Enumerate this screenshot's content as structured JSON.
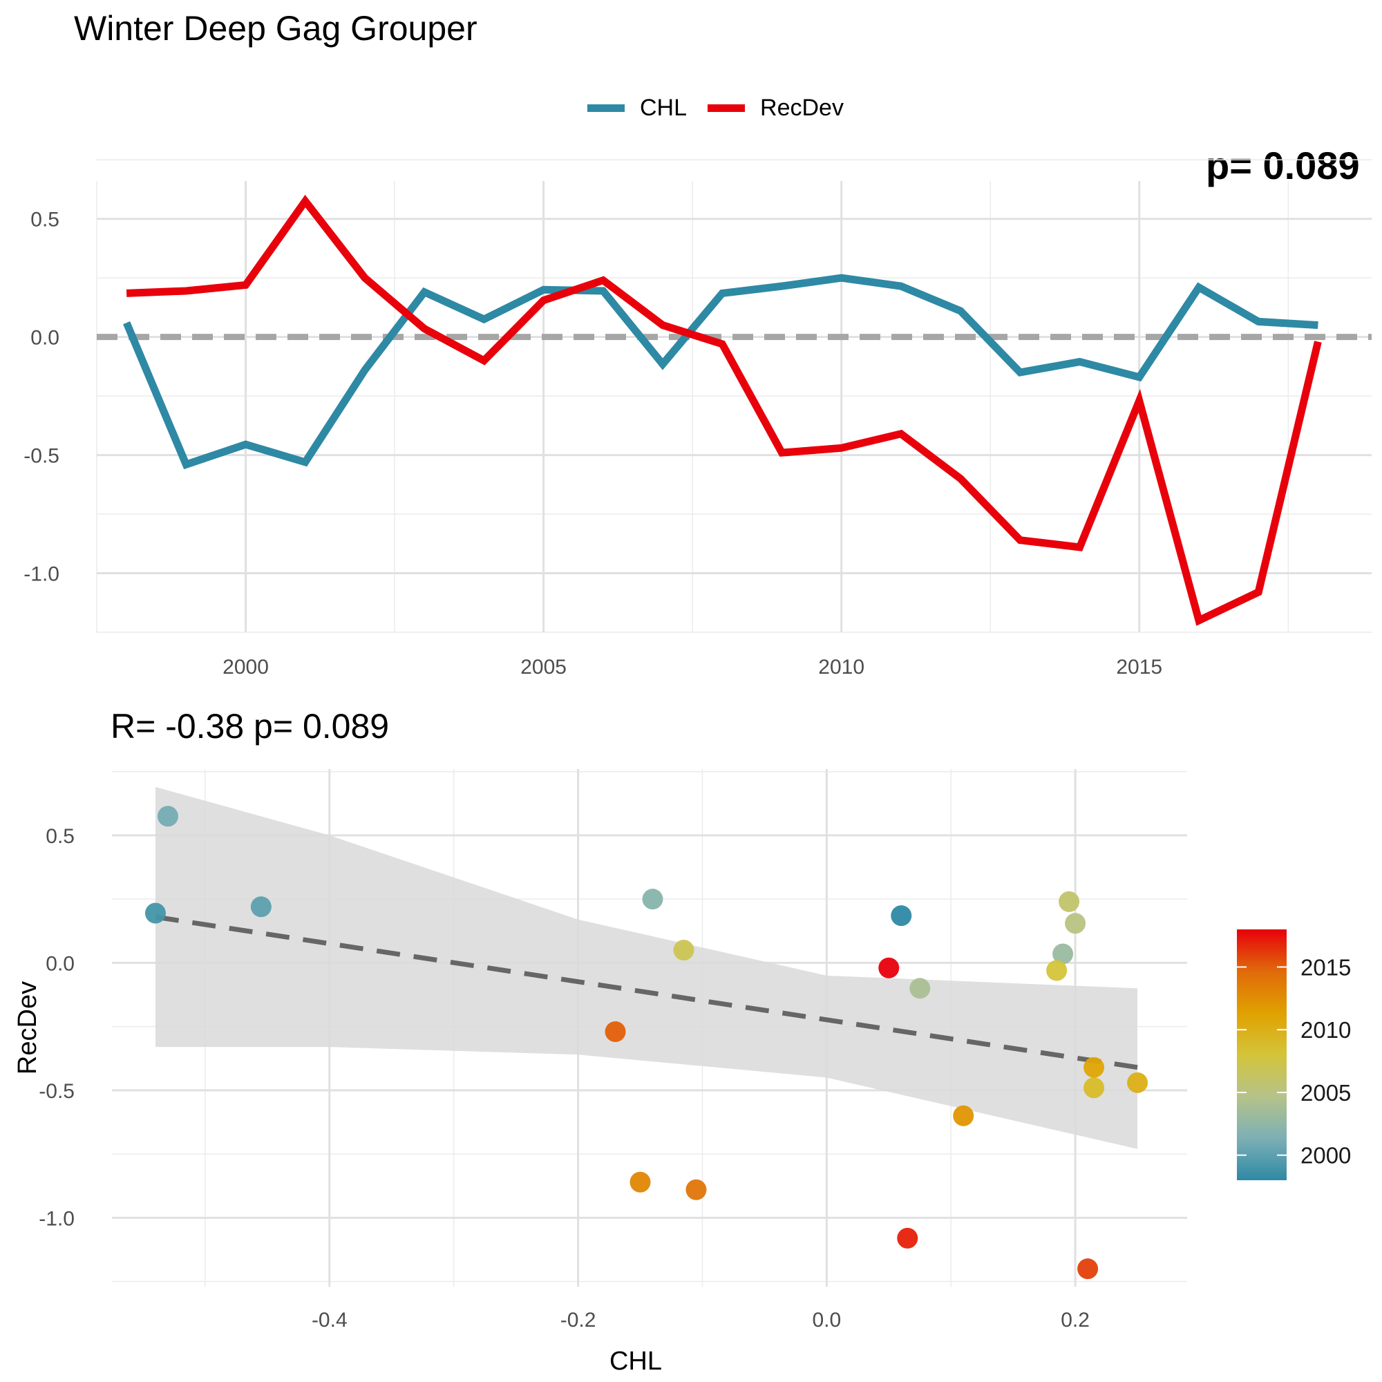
{
  "title": "Winter Deep Gag Grouper",
  "legend": [
    {
      "label": "CHL",
      "color": "#2E89A4"
    },
    {
      "label": "RecDev",
      "color": "#E8000B"
    }
  ],
  "corner_annotation": "p= 0.089",
  "scatter_annotation": "R= -0.38  p= 0.089",
  "chart_data": [
    {
      "type": "line",
      "x": [
        1998,
        1999,
        2000,
        2001,
        2002,
        2003,
        2004,
        2005,
        2006,
        2007,
        2008,
        2009,
        2010,
        2011,
        2012,
        2013,
        2014,
        2015,
        2016,
        2017,
        2018
      ],
      "series": [
        {
          "name": "CHL",
          "color": "#2E89A4",
          "values": [
            0.06,
            -0.54,
            -0.455,
            -0.53,
            -0.14,
            0.19,
            0.075,
            0.2,
            0.195,
            -0.115,
            0.185,
            0.215,
            0.25,
            0.215,
            0.11,
            -0.15,
            -0.105,
            -0.17,
            0.21,
            0.065,
            0.05
          ]
        },
        {
          "name": "RecDev",
          "color": "#E8000B",
          "values": [
            0.185,
            0.195,
            0.22,
            0.575,
            0.25,
            0.035,
            -0.1,
            0.155,
            0.24,
            0.05,
            -0.03,
            -0.49,
            -0.47,
            -0.41,
            -0.6,
            -0.86,
            -0.89,
            -0.27,
            -1.2,
            -1.08,
            -0.02
          ]
        }
      ],
      "hline": 0,
      "xlim": [
        1997.5,
        2018.9
      ],
      "ylim": [
        -1.25,
        0.66
      ],
      "xticks": [
        2000,
        2005,
        2010,
        2015
      ],
      "yticks": [
        -1.0,
        -0.5,
        0.0,
        0.5
      ],
      "xtick_labels": [
        "2000",
        "2005",
        "2010",
        "2015"
      ],
      "ytick_labels": [
        "-1.0",
        "-0.5",
        "0.0",
        "0.5"
      ],
      "grid": true
    },
    {
      "type": "scatter",
      "xlabel": "CHL",
      "ylabel": "RecDev",
      "xlim": [
        -0.575,
        0.29
      ],
      "ylim": [
        -1.27,
        0.76
      ],
      "xticks": [
        -0.4,
        -0.2,
        0.0,
        0.2
      ],
      "yticks": [
        -1.0,
        -0.5,
        0.0,
        0.5
      ],
      "xtick_labels": [
        "-0.4",
        "-0.2",
        "0.0",
        "0.2"
      ],
      "ytick_labels": [
        "-1.0",
        "-0.5",
        "0.0",
        "0.5"
      ],
      "grid": true,
      "points": [
        {
          "year": 1998,
          "x": 0.06,
          "y": 0.185
        },
        {
          "year": 1999,
          "x": -0.54,
          "y": 0.195
        },
        {
          "year": 2000,
          "x": -0.455,
          "y": 0.22
        },
        {
          "year": 2001,
          "x": -0.53,
          "y": 0.575
        },
        {
          "year": 2002,
          "x": -0.14,
          "y": 0.25
        },
        {
          "year": 2003,
          "x": 0.19,
          "y": 0.035
        },
        {
          "year": 2004,
          "x": 0.075,
          "y": -0.1
        },
        {
          "year": 2005,
          "x": 0.2,
          "y": 0.155
        },
        {
          "year": 2006,
          "x": 0.195,
          "y": 0.24
        },
        {
          "year": 2007,
          "x": -0.115,
          "y": 0.05
        },
        {
          "year": 2008,
          "x": 0.185,
          "y": -0.03
        },
        {
          "year": 2009,
          "x": 0.215,
          "y": -0.49
        },
        {
          "year": 2010,
          "x": 0.25,
          "y": -0.47
        },
        {
          "year": 2011,
          "x": 0.215,
          "y": -0.41
        },
        {
          "year": 2012,
          "x": 0.11,
          "y": -0.6
        },
        {
          "year": 2013,
          "x": -0.15,
          "y": -0.86
        },
        {
          "year": 2014,
          "x": -0.105,
          "y": -0.89
        },
        {
          "year": 2015,
          "x": -0.17,
          "y": -0.27
        },
        {
          "year": 2016,
          "x": 0.21,
          "y": -1.2
        },
        {
          "year": 2017,
          "x": 0.065,
          "y": -1.08
        },
        {
          "year": 2018,
          "x": 0.05,
          "y": -0.02
        }
      ],
      "fit": {
        "x": [
          -0.54,
          0.25
        ],
        "y": [
          0.18,
          -0.41
        ],
        "style": "dashed",
        "color": "#666666"
      },
      "ribbon": {
        "x": [
          -0.54,
          -0.4,
          -0.2,
          0.0,
          0.25
        ],
        "upper": [
          0.69,
          0.5,
          0.17,
          -0.05,
          -0.1
        ],
        "lower": [
          -0.33,
          -0.33,
          -0.36,
          -0.45,
          -0.73
        ],
        "color": "#D9D9D9"
      },
      "colorbar": {
        "label_values": [
          2000,
          2005,
          2010,
          2015
        ],
        "labels": [
          "2000",
          "2005",
          "2010",
          "2015"
        ],
        "range": [
          1998,
          2018
        ],
        "stops": [
          "#2E89A4",
          "#7CB0B5",
          "#B5C38A",
          "#D4C43A",
          "#E0A100",
          "#E06A0A",
          "#E8000B"
        ]
      }
    }
  ]
}
